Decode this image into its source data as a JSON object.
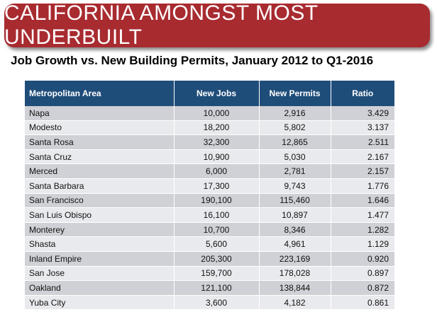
{
  "banner": {
    "title": "CALIFORNIA AMONGST MOST UNDERBUILT"
  },
  "subtitle": "Job Growth vs. New Building Permits, January 2012 to Q1-2016",
  "table": {
    "headers": [
      "Metropolitan Area",
      "New Jobs",
      "New Permits",
      "Ratio"
    ],
    "rows": [
      [
        "Napa",
        "10,000",
        "2,916",
        "3.429"
      ],
      [
        "Modesto",
        "18,200",
        "5,802",
        "3.137"
      ],
      [
        "Santa Rosa",
        "32,300",
        "12,865",
        "2.511"
      ],
      [
        "Santa Cruz",
        "10,900",
        "5,030",
        "2.167"
      ],
      [
        "Merced",
        "6,000",
        "2,781",
        "2.157"
      ],
      [
        "Santa Barbara",
        "17,300",
        "9,743",
        "1.776"
      ],
      [
        "San Francisco",
        "190,100",
        "115,460",
        "1.646"
      ],
      [
        "San Luis Obispo",
        "16,100",
        "10,897",
        "1.477"
      ],
      [
        "Monterey",
        "10,700",
        "8,346",
        "1.282"
      ],
      [
        "Shasta",
        "5,600",
        "4,961",
        "1.129"
      ],
      [
        "Inland Empire",
        "205,300",
        "223,169",
        "0.920"
      ],
      [
        "San Jose",
        "159,700",
        "178,028",
        "0.897"
      ],
      [
        "Oakland",
        "121,100",
        "138,844",
        "0.872"
      ],
      [
        "Yuba City",
        "3,600",
        "4,182",
        "0.861"
      ]
    ]
  },
  "colors": {
    "banner": "#a82b30",
    "header": "#1f4d7a",
    "row_dark": "#cfd1d6",
    "row_light": "#e9eaed"
  }
}
